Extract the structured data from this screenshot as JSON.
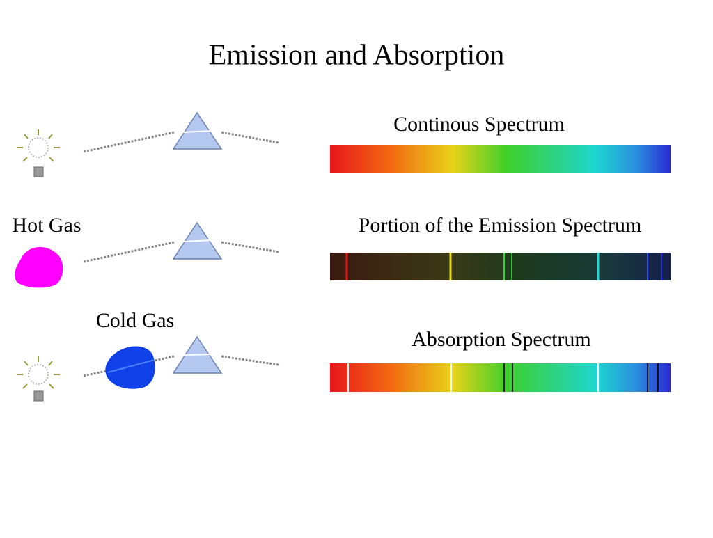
{
  "title": "Emission and Absorption",
  "gases": [
    "Hot Gas",
    "Cold Gas"
  ],
  "spectra": [
    "Continous Spectrum",
    "Portion of the Emission Spectrum",
    "Absorption Spectrum"
  ]
}
